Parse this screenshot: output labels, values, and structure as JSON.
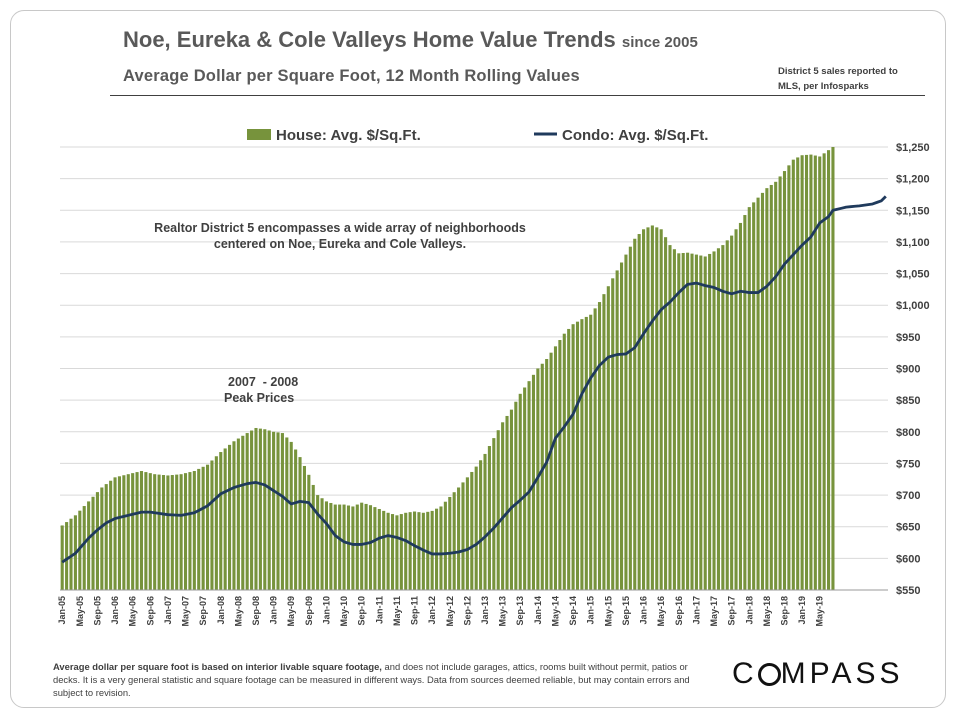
{
  "header": {
    "title": "Noe, Eureka & Cole Valleys Home Value Trends",
    "title_suffix": "since 2005",
    "subtitle": "Average Dollar per Square Foot, 12 Month Rolling Values",
    "source_line1": "District 5 sales reported to",
    "source_line2": "MLS, per Infosparks"
  },
  "annotations": {
    "district_line1": "Realtor District 5 encompasses a wide array of neighborhoods",
    "district_line2": "centered on Noe, Eureka and Cole Valleys.",
    "peak_line1": "2007  - 2008",
    "peak_line2": "Peak Prices"
  },
  "footnote": {
    "bold": "Average dollar per square foot is based on interior livable square footage,",
    "rest": " and does not include garages, attics, rooms built without permit, patios or decks. It is a very general statistic and square footage can be measured in different ways. Data from sources deemed reliable, but may contain errors and subject to revision."
  },
  "logo": {
    "pre": "C",
    "post": "MPASS"
  },
  "colors": {
    "house": "#77933c",
    "condo": "#1f3a5c",
    "grid": "#d9d9d9",
    "text": "#404040"
  },
  "chart_data": {
    "type": "bar+line",
    "title": "Noe, Eureka & Cole Valleys Home Value Trends since 2005",
    "subtitle": "Average Dollar per Square Foot, 12 Month Rolling Values",
    "xlabel": "",
    "ylabel": "",
    "ylim": [
      550,
      1250
    ],
    "y_ticks": [
      550,
      600,
      650,
      700,
      750,
      800,
      850,
      900,
      950,
      1000,
      1050,
      1100,
      1150,
      1200,
      1250
    ],
    "y_tick_labels": [
      "$550",
      "$600",
      "$650",
      "$700",
      "$750",
      "$800",
      "$850",
      "$900",
      "$950",
      "$1,000",
      "$1,050",
      "$1,100",
      "$1,150",
      "$1,200",
      "$1,250"
    ],
    "x_start": "Jan-05",
    "x_end": "May-19",
    "x_tick_every_months": 4,
    "x_tick_labels": [
      "Jan-05",
      "May-05",
      "Sep-05",
      "Jan-06",
      "May-06",
      "Sep-06",
      "Jan-07",
      "May-07",
      "Sep-07",
      "Jan-08",
      "May-08",
      "Sep-08",
      "Jan-09",
      "May-09",
      "Sep-09",
      "Jan-10",
      "May-10",
      "Sep-10",
      "Jan-11",
      "May-11",
      "Sep-11",
      "Jan-12",
      "May-12",
      "Sep-12",
      "Jan-13",
      "May-13",
      "Sep-13",
      "Jan-14",
      "May-14",
      "Sep-14",
      "Jan-15",
      "May-15",
      "Sep-15",
      "Jan-16",
      "May-16",
      "Sep-16",
      "Jan-17",
      "May-17",
      "Sep-17",
      "Jan-18",
      "May-18",
      "Sep-18",
      "Jan-19",
      "May-19"
    ],
    "legend": [
      "House: Avg. $/Sq.Ft.",
      "Condo: Avg. $/Sq.Ft."
    ],
    "legend_position": "top-center",
    "grid": true,
    "series": [
      {
        "name": "House: Avg. $/Sq.Ft.",
        "kind": "bar",
        "color": "#77933c",
        "anchors": [
          [
            0,
            652
          ],
          [
            3,
            668
          ],
          [
            6,
            690
          ],
          [
            9,
            712
          ],
          [
            12,
            728
          ],
          [
            15,
            733
          ],
          [
            18,
            738
          ],
          [
            21,
            733
          ],
          [
            24,
            731
          ],
          [
            27,
            733
          ],
          [
            30,
            738
          ],
          [
            33,
            748
          ],
          [
            36,
            768
          ],
          [
            39,
            785
          ],
          [
            42,
            798
          ],
          [
            44,
            806
          ],
          [
            46,
            804
          ],
          [
            48,
            800
          ],
          [
            50,
            798
          ],
          [
            52,
            784
          ],
          [
            54,
            760
          ],
          [
            56,
            732
          ],
          [
            58,
            700
          ],
          [
            60,
            690
          ],
          [
            62,
            685
          ],
          [
            64,
            685
          ],
          [
            66,
            682
          ],
          [
            68,
            688
          ],
          [
            70,
            684
          ],
          [
            72,
            678
          ],
          [
            74,
            672
          ],
          [
            76,
            668
          ],
          [
            78,
            672
          ],
          [
            80,
            674
          ],
          [
            82,
            672
          ],
          [
            84,
            675
          ],
          [
            86,
            682
          ],
          [
            88,
            697
          ],
          [
            90,
            712
          ],
          [
            92,
            728
          ],
          [
            94,
            745
          ],
          [
            96,
            765
          ],
          [
            98,
            790
          ],
          [
            100,
            815
          ],
          [
            102,
            835
          ],
          [
            104,
            860
          ],
          [
            106,
            880
          ],
          [
            108,
            900
          ],
          [
            110,
            915
          ],
          [
            112,
            935
          ],
          [
            114,
            955
          ],
          [
            116,
            970
          ],
          [
            118,
            978
          ],
          [
            120,
            985
          ],
          [
            122,
            1005
          ],
          [
            124,
            1030
          ],
          [
            126,
            1055
          ],
          [
            128,
            1080
          ],
          [
            130,
            1105
          ],
          [
            132,
            1120
          ],
          [
            134,
            1126
          ],
          [
            136,
            1120
          ],
          [
            138,
            1095
          ],
          [
            140,
            1082
          ],
          [
            142,
            1083
          ],
          [
            144,
            1080
          ],
          [
            146,
            1077
          ],
          [
            148,
            1085
          ],
          [
            150,
            1095
          ],
          [
            152,
            1110
          ],
          [
            154,
            1130
          ],
          [
            156,
            1155
          ],
          [
            158,
            1170
          ],
          [
            160,
            1185
          ],
          [
            162,
            1195
          ],
          [
            164,
            1212
          ],
          [
            166,
            1230
          ],
          [
            168,
            1237
          ],
          [
            170,
            1238
          ],
          [
            172,
            1235
          ],
          [
            174,
            1245
          ],
          [
            175,
            1250
          ]
        ]
      },
      {
        "name": "Condo: Avg. $/Sq.Ft.",
        "kind": "line",
        "color": "#1f3a5c",
        "anchors": [
          [
            0,
            594
          ],
          [
            3,
            608
          ],
          [
            6,
            632
          ],
          [
            8,
            645
          ],
          [
            10,
            656
          ],
          [
            12,
            663
          ],
          [
            15,
            668
          ],
          [
            18,
            673
          ],
          [
            20,
            673
          ],
          [
            22,
            671
          ],
          [
            24,
            669
          ],
          [
            27,
            668
          ],
          [
            30,
            672
          ],
          [
            33,
            683
          ],
          [
            36,
            702
          ],
          [
            39,
            712
          ],
          [
            42,
            718
          ],
          [
            44,
            720
          ],
          [
            46,
            716
          ],
          [
            48,
            707
          ],
          [
            50,
            698
          ],
          [
            52,
            686
          ],
          [
            54,
            690
          ],
          [
            56,
            688
          ],
          [
            58,
            670
          ],
          [
            60,
            655
          ],
          [
            62,
            636
          ],
          [
            64,
            626
          ],
          [
            66,
            622
          ],
          [
            68,
            622
          ],
          [
            70,
            625
          ],
          [
            72,
            632
          ],
          [
            74,
            636
          ],
          [
            76,
            633
          ],
          [
            78,
            628
          ],
          [
            80,
            620
          ],
          [
            82,
            613
          ],
          [
            84,
            607
          ],
          [
            86,
            607
          ],
          [
            88,
            608
          ],
          [
            90,
            610
          ],
          [
            92,
            614
          ],
          [
            94,
            622
          ],
          [
            96,
            634
          ],
          [
            98,
            648
          ],
          [
            100,
            664
          ],
          [
            102,
            680
          ],
          [
            104,
            692
          ],
          [
            106,
            705
          ],
          [
            108,
            728
          ],
          [
            110,
            752
          ],
          [
            112,
            790
          ],
          [
            114,
            808
          ],
          [
            116,
            828
          ],
          [
            118,
            860
          ],
          [
            120,
            885
          ],
          [
            122,
            905
          ],
          [
            124,
            918
          ],
          [
            126,
            922
          ],
          [
            128,
            923
          ],
          [
            130,
            933
          ],
          [
            132,
            955
          ],
          [
            134,
            975
          ],
          [
            136,
            993
          ],
          [
            138,
            1005
          ],
          [
            140,
            1020
          ],
          [
            142,
            1033
          ],
          [
            144,
            1035
          ],
          [
            146,
            1031
          ],
          [
            148,
            1028
          ],
          [
            150,
            1022
          ],
          [
            152,
            1018
          ],
          [
            154,
            1022
          ],
          [
            156,
            1020
          ],
          [
            158,
            1020
          ],
          [
            160,
            1030
          ],
          [
            162,
            1045
          ],
          [
            164,
            1065
          ],
          [
            166,
            1080
          ],
          [
            168,
            1095
          ],
          [
            170,
            1108
          ],
          [
            172,
            1130
          ],
          [
            174,
            1140
          ],
          [
            175,
            1150
          ],
          [
            178,
            1155
          ],
          [
            181,
            1157
          ],
          [
            184,
            1160
          ],
          [
            186,
            1165
          ],
          [
            187,
            1172
          ]
        ]
      }
    ]
  }
}
